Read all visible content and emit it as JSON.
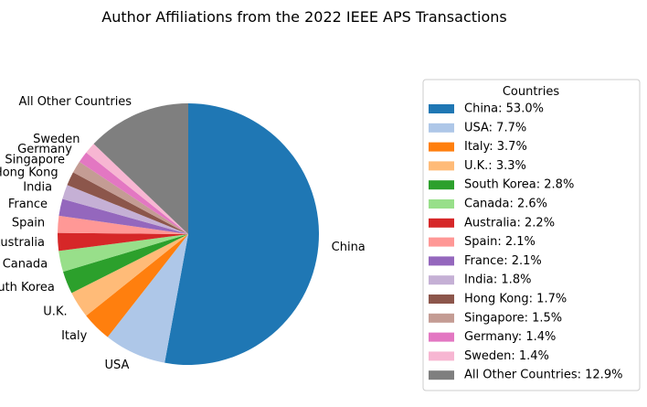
{
  "chart_data": {
    "type": "pie",
    "title": "Author Affiliations from the 2022 IEEE APS Transactions",
    "start_angle_deg": 90,
    "direction": "clockwise",
    "legend_title": "Countries",
    "legend_placement": "right",
    "slices": [
      {
        "label": "China",
        "value": 53.0,
        "legend": "China: 53.0%",
        "color": "#1f77b4"
      },
      {
        "label": "USA",
        "value": 7.7,
        "legend": "USA: 7.7%",
        "color": "#aec7e8"
      },
      {
        "label": "Italy",
        "value": 3.7,
        "legend": "Italy: 3.7%",
        "color": "#ff7f0e"
      },
      {
        "label": "U.K.",
        "value": 3.3,
        "legend": "U.K.: 3.3%",
        "color": "#ffbb78"
      },
      {
        "label": "South Korea",
        "value": 2.8,
        "legend": "South Korea: 2.8%",
        "color": "#2ca02c"
      },
      {
        "label": "Canada",
        "value": 2.6,
        "legend": "Canada: 2.6%",
        "color": "#98df8a"
      },
      {
        "label": "Australia",
        "value": 2.2,
        "legend": "Australia: 2.2%",
        "color": "#d62728"
      },
      {
        "label": "Spain",
        "value": 2.1,
        "legend": "Spain: 2.1%",
        "color": "#ff9896"
      },
      {
        "label": "France",
        "value": 2.1,
        "legend": "France: 2.1%",
        "color": "#9467bd"
      },
      {
        "label": "India",
        "value": 1.8,
        "legend": "India: 1.8%",
        "color": "#c5b0d5"
      },
      {
        "label": "Hong Kong",
        "value": 1.7,
        "legend": "Hong Kong: 1.7%",
        "color": "#8c564b"
      },
      {
        "label": "Singapore",
        "value": 1.5,
        "legend": "Singapore: 1.5%",
        "color": "#c49c94"
      },
      {
        "label": "Germany",
        "value": 1.4,
        "legend": "Germany: 1.4%",
        "color": "#e377c2"
      },
      {
        "label": "Sweden",
        "value": 1.4,
        "legend": "Sweden: 1.4%",
        "color": "#f7b6d2"
      },
      {
        "label": "All Other Countries",
        "value": 12.9,
        "legend": "All Other Countries: 12.9%",
        "color": "#7f7f7f"
      }
    ]
  }
}
